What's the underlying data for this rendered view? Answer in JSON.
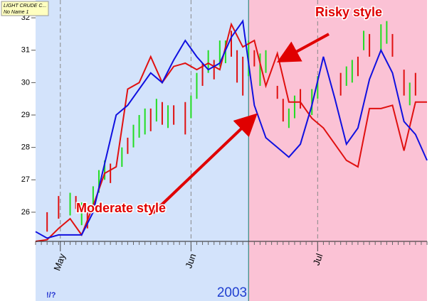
{
  "chart_data": {
    "type": "ohlc-lines",
    "instrument": "LIGHT CRUDE C...",
    "sheet": "No Name 1",
    "year_label": "2003",
    "corner_mark": "!/?",
    "annotations": [
      "Risky style",
      "Moderate style"
    ],
    "xlim": [
      0,
      68
    ],
    "ylim": [
      25.1,
      32.55
    ],
    "yticks": [
      26,
      27,
      28,
      29,
      30,
      31,
      32
    ],
    "xticks": [
      {
        "value": 4.3,
        "label": "May"
      },
      {
        "value": 27,
        "label": "Jun"
      },
      {
        "value": 49,
        "label": "Jul"
      }
    ],
    "regions": [
      {
        "from": 0,
        "to": 37,
        "color": "#d3e3fb"
      },
      {
        "from": 37,
        "to": 68,
        "color": "#fbc2d5"
      }
    ],
    "x": [
      0,
      2,
      4,
      6,
      8,
      10,
      12,
      14,
      16,
      18,
      20,
      22,
      24,
      26,
      28,
      30,
      32,
      34,
      36,
      38,
      40,
      42,
      44,
      46,
      48,
      50,
      52,
      54,
      56,
      58,
      60,
      62,
      64,
      66,
      68
    ],
    "series": [
      {
        "color": "#e01010",
        "values": [
          25.1,
          25.15,
          25.5,
          25.8,
          25.3,
          26.2,
          27.2,
          27.4,
          29.8,
          30.0,
          30.8,
          30.0,
          30.5,
          30.6,
          30.4,
          30.6,
          30.4,
          31.8,
          31.1,
          31.3,
          29.9,
          30.9,
          29.4,
          29.4,
          28.9,
          28.6,
          28.1,
          27.6,
          27.4,
          29.2,
          29.2,
          29.3,
          27.9,
          29.4,
          29.4
        ]
      },
      {
        "color": "#1010e0",
        "values": [
          25.4,
          25.2,
          25.3,
          25.3,
          25.3,
          26.0,
          27.5,
          29.0,
          29.3,
          29.8,
          30.3,
          30.0,
          30.7,
          31.3,
          30.8,
          30.4,
          30.6,
          31.4,
          31.9,
          29.3,
          28.3,
          28.0,
          27.7,
          28.1,
          29.3,
          30.8,
          29.5,
          28.1,
          28.6,
          30.1,
          31.0,
          30.3,
          28.8,
          28.4,
          27.6
        ]
      }
    ],
    "bars": {
      "up_color": "#22dd22",
      "down_color": "#e01010",
      "x": [
        2,
        4,
        6,
        7,
        8,
        9,
        10,
        11,
        12,
        13,
        15,
        16,
        17,
        18,
        19,
        20,
        21,
        22,
        23,
        24,
        26,
        27,
        28,
        29,
        30,
        31,
        32,
        33,
        34,
        35,
        36,
        37,
        38,
        39,
        40,
        42,
        43,
        44,
        45,
        46,
        48,
        49,
        53,
        54,
        55,
        56,
        57,
        58,
        60,
        61,
        62,
        64,
        65,
        66
      ],
      "low": [
        25.4,
        25.8,
        25.9,
        26.1,
        25.6,
        25.5,
        26.0,
        26.6,
        27.0,
        26.9,
        27.4,
        27.8,
        28.0,
        28.3,
        28.4,
        28.5,
        28.8,
        28.7,
        28.6,
        28.7,
        28.4,
        28.9,
        29.5,
        29.9,
        30.3,
        30.1,
        30.5,
        30.6,
        30.8,
        30.0,
        29.6,
        30.2,
        30.5,
        29.9,
        30.3,
        29.5,
        28.8,
        28.6,
        28.9,
        29.2,
        29.0,
        29.5,
        29.6,
        29.9,
        30.0,
        30.2,
        31.0,
        30.8,
        31.0,
        31.2,
        30.8,
        29.6,
        29.3,
        29.6
      ],
      "high": [
        26.0,
        26.5,
        26.6,
        26.5,
        26.3,
        26.0,
        26.8,
        27.3,
        27.6,
        27.5,
        28.0,
        28.3,
        28.7,
        29.0,
        29.2,
        29.2,
        29.5,
        29.4,
        29.3,
        29.3,
        29.4,
        29.6,
        30.3,
        30.6,
        31.0,
        30.7,
        31.3,
        31.3,
        31.6,
        31.0,
        30.8,
        31.3,
        31.0,
        30.9,
        31.0,
        29.9,
        29.5,
        29.2,
        29.6,
        29.8,
        29.8,
        30.2,
        30.3,
        30.5,
        30.7,
        30.8,
        31.6,
        31.5,
        31.8,
        31.9,
        31.5,
        30.4,
        30.0,
        30.3
      ],
      "up": [
        false,
        false,
        true,
        false,
        true,
        false,
        true,
        true,
        true,
        false,
        true,
        false,
        true,
        true,
        true,
        false,
        true,
        false,
        true,
        false,
        false,
        true,
        true,
        false,
        true,
        false,
        true,
        true,
        false,
        false,
        false,
        true,
        false,
        true,
        true,
        false,
        false,
        true,
        true,
        false,
        true,
        true,
        false,
        true,
        true,
        false,
        true,
        false,
        true,
        true,
        false,
        false,
        true,
        false
      ]
    }
  }
}
